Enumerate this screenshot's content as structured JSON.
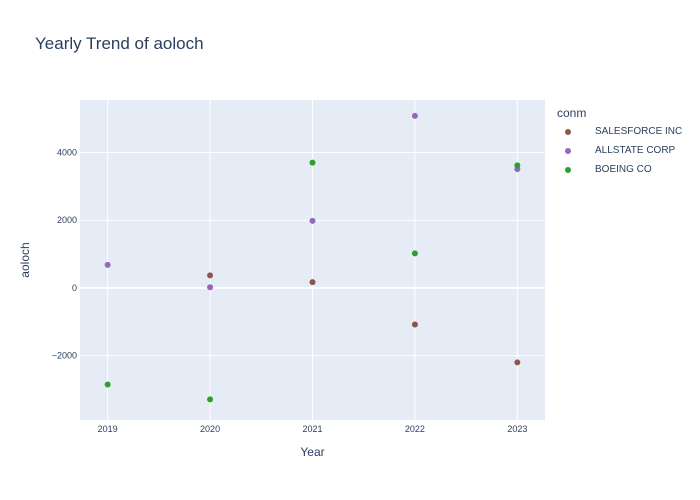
{
  "chart_data": {
    "type": "scatter",
    "title": "Yearly Trend of aoloch",
    "xlabel": "Year",
    "ylabel": "aoloch",
    "x": [
      2019,
      2020,
      2021,
      2022,
      2023
    ],
    "x_ticks": [
      "2019",
      "2020",
      "2021",
      "2022",
      "2023"
    ],
    "y_ticks": [
      -2000,
      0,
      2000,
      4000
    ],
    "y_tick_labels": [
      "−2000",
      "0",
      "2000",
      "4000"
    ],
    "xlim": [
      2018.73,
      2023.27
    ],
    "ylim": [
      -3900,
      5550
    ],
    "grid": true,
    "legend_title": "conm",
    "legend_position": "right",
    "series": [
      {
        "name": "SALESFORCE INC",
        "color": "#8c564b",
        "values": [
          null,
          370,
          170,
          -1080,
          -2200
        ]
      },
      {
        "name": "ALLSTATE CORP",
        "color": "#9467bd",
        "values": [
          680,
          20,
          1980,
          5080,
          3510
        ]
      },
      {
        "name": "BOEING CO",
        "color": "#2ca02c",
        "values": [
          -2850,
          -3290,
          3700,
          1020,
          3620
        ]
      }
    ]
  }
}
